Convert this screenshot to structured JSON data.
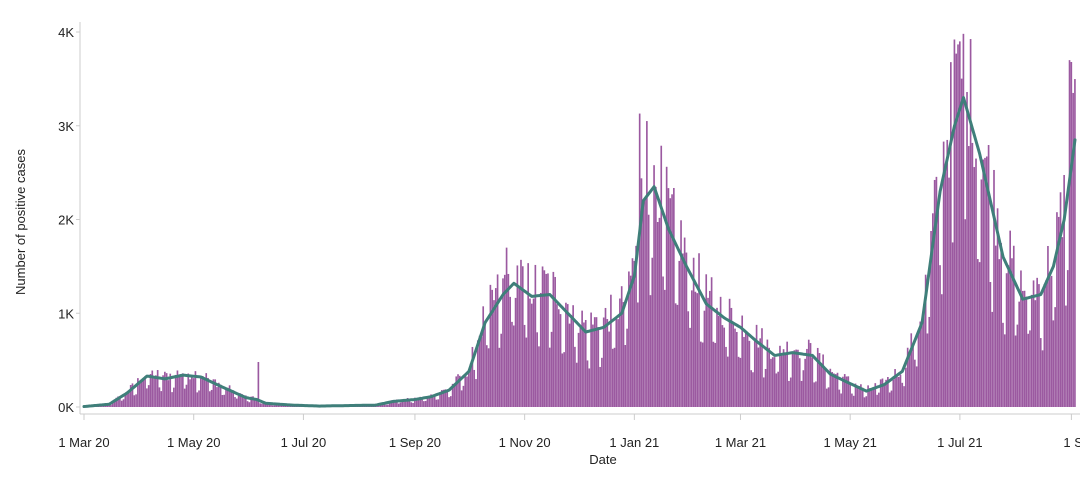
{
  "chart_data": {
    "type": "bar",
    "title": "",
    "xlabel": "Date",
    "ylabel": "Number of positive cases",
    "x_start": "2020-03-01",
    "x_end": "2021-09-03",
    "ylim": [
      0,
      4000
    ],
    "grid": false,
    "legend": "none",
    "colors": {
      "bars": "#9b59a0",
      "trend": "#3f7f7a",
      "axis": "#cccccc"
    },
    "y_ticks": [
      {
        "value": 0,
        "label": "0K"
      },
      {
        "value": 1000,
        "label": "1K"
      },
      {
        "value": 2000,
        "label": "2K"
      },
      {
        "value": 3000,
        "label": "3K"
      },
      {
        "value": 4000,
        "label": "4K"
      }
    ],
    "x_ticks": [
      {
        "date": "2020-03-01",
        "label": "1 Mar 20"
      },
      {
        "date": "2020-05-01",
        "label": "1 May 20"
      },
      {
        "date": "2020-07-01",
        "label": "1 Jul 20"
      },
      {
        "date": "2020-09-01",
        "label": "1 Sep 20"
      },
      {
        "date": "2020-11-01",
        "label": "1 Nov 20"
      },
      {
        "date": "2021-01-01",
        "label": "1 Jan 21"
      },
      {
        "date": "2021-03-01",
        "label": "1 Mar 21"
      },
      {
        "date": "2021-05-01",
        "label": "1 May 21"
      },
      {
        "date": "2021-07-01",
        "label": "1 Jul 21"
      },
      {
        "date": "2021-09-01",
        "label": "1 S"
      }
    ],
    "trend_series": [
      [
        "2020-03-01",
        5
      ],
      [
        "2020-03-15",
        30
      ],
      [
        "2020-03-25",
        150
      ],
      [
        "2020-04-05",
        330
      ],
      [
        "2020-04-15",
        300
      ],
      [
        "2020-04-25",
        340
      ],
      [
        "2020-05-05",
        320
      ],
      [
        "2020-05-15",
        230
      ],
      [
        "2020-05-30",
        100
      ],
      [
        "2020-06-05",
        80
      ],
      [
        "2020-06-10",
        40
      ],
      [
        "2020-06-25",
        20
      ],
      [
        "2020-07-10",
        10
      ],
      [
        "2020-07-25",
        15
      ],
      [
        "2020-08-10",
        20
      ],
      [
        "2020-08-20",
        60
      ],
      [
        "2020-09-01",
        80
      ],
      [
        "2020-09-10",
        110
      ],
      [
        "2020-09-20",
        180
      ],
      [
        "2020-10-01",
        380
      ],
      [
        "2020-10-10",
        900
      ],
      [
        "2020-10-20",
        1200
      ],
      [
        "2020-10-26",
        1320
      ],
      [
        "2020-11-05",
        1180
      ],
      [
        "2020-11-15",
        1200
      ],
      [
        "2020-11-25",
        1000
      ],
      [
        "2020-12-05",
        800
      ],
      [
        "2020-12-15",
        850
      ],
      [
        "2020-12-25",
        1000
      ],
      [
        "2021-01-01",
        1400
      ],
      [
        "2021-01-06",
        2200
      ],
      [
        "2021-01-12",
        2350
      ],
      [
        "2021-01-20",
        1900
      ],
      [
        "2021-01-30",
        1500
      ],
      [
        "2021-02-10",
        1100
      ],
      [
        "2021-02-20",
        950
      ],
      [
        "2021-03-01",
        850
      ],
      [
        "2021-03-10",
        700
      ],
      [
        "2021-03-20",
        550
      ],
      [
        "2021-03-30",
        580
      ],
      [
        "2021-04-10",
        550
      ],
      [
        "2021-04-20",
        350
      ],
      [
        "2021-05-01",
        250
      ],
      [
        "2021-05-10",
        170
      ],
      [
        "2021-05-20",
        240
      ],
      [
        "2021-05-30",
        380
      ],
      [
        "2021-06-10",
        900
      ],
      [
        "2021-06-20",
        2300
      ],
      [
        "2021-06-28",
        3000
      ],
      [
        "2021-07-03",
        3300
      ],
      [
        "2021-07-12",
        2700
      ],
      [
        "2021-07-25",
        1600
      ],
      [
        "2021-08-05",
        1150
      ],
      [
        "2021-08-15",
        1200
      ],
      [
        "2021-08-22",
        1500
      ],
      [
        "2021-08-28",
        2000
      ],
      [
        "2021-09-03",
        2850
      ]
    ],
    "daily_spikes": [
      [
        "2020-06-06",
        480
      ],
      [
        "2020-10-22",
        1700
      ],
      [
        "2021-01-04",
        3130
      ],
      [
        "2021-01-08",
        3050
      ],
      [
        "2021-06-28",
        3920
      ],
      [
        "2021-07-01",
        3900
      ],
      [
        "2021-07-05",
        3360
      ],
      [
        "2021-07-10",
        2650
      ],
      [
        "2021-08-31",
        3700
      ],
      [
        "2021-09-01",
        3680
      ],
      [
        "2021-09-02",
        3350
      ]
    ],
    "weekend_low_ratio": 0.6,
    "daily_variation": 0.2
  }
}
